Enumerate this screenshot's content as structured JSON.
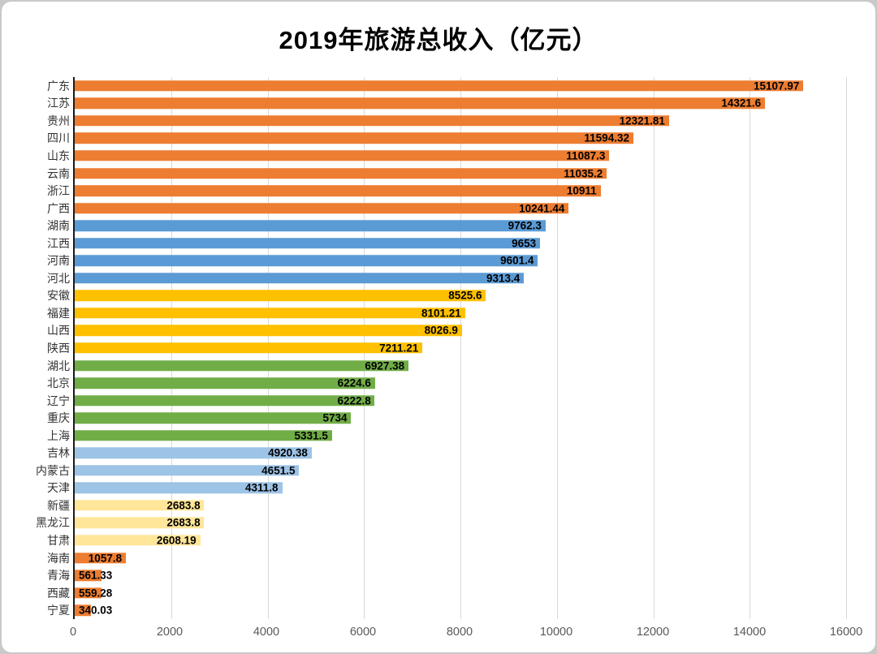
{
  "chart_data": {
    "type": "bar",
    "orientation": "horizontal",
    "title": "2019年旅游总收入（亿元）",
    "xlabel": "",
    "ylabel": "",
    "xlim": [
      0,
      16000
    ],
    "x_ticks": [
      0,
      2000,
      4000,
      6000,
      8000,
      10000,
      12000,
      14000,
      16000
    ],
    "grid": true,
    "legend": "none",
    "value_label_position": "inside-end",
    "palette": {
      "orange": "#ED7D31",
      "blue": "#5B9BD5",
      "gold": "#FFC000",
      "green": "#70AD47",
      "light_blue": "#9DC3E6",
      "cream": "#FFE699"
    },
    "bars": [
      {
        "category": "广东",
        "value": 15107.97,
        "label": "15107.97",
        "color_key": "orange"
      },
      {
        "category": "江苏",
        "value": 14321.6,
        "label": "14321.6",
        "color_key": "orange"
      },
      {
        "category": "贵州",
        "value": 12321.81,
        "label": "12321.81",
        "color_key": "orange"
      },
      {
        "category": "四川",
        "value": 11594.32,
        "label": "11594.32",
        "color_key": "orange"
      },
      {
        "category": "山东",
        "value": 11087.3,
        "label": "11087.3",
        "color_key": "orange"
      },
      {
        "category": "云南",
        "value": 11035.2,
        "label": "11035.2",
        "color_key": "orange"
      },
      {
        "category": "浙江",
        "value": 10911,
        "label": "10911",
        "color_key": "orange"
      },
      {
        "category": "广西",
        "value": 10241.44,
        "label": "10241.44",
        "color_key": "orange"
      },
      {
        "category": "湖南",
        "value": 9762.3,
        "label": "9762.3",
        "color_key": "blue"
      },
      {
        "category": "江西",
        "value": 9653,
        "label": "9653",
        "color_key": "blue"
      },
      {
        "category": "河南",
        "value": 9601.4,
        "label": "9601.4",
        "color_key": "blue"
      },
      {
        "category": "河北",
        "value": 9313.4,
        "label": "9313.4",
        "color_key": "blue"
      },
      {
        "category": "安徽",
        "value": 8525.6,
        "label": "8525.6",
        "color_key": "gold"
      },
      {
        "category": "福建",
        "value": 8101.21,
        "label": "8101.21",
        "color_key": "gold"
      },
      {
        "category": "山西",
        "value": 8026.9,
        "label": "8026.9",
        "color_key": "gold"
      },
      {
        "category": "陕西",
        "value": 7211.21,
        "label": "7211.21",
        "color_key": "gold"
      },
      {
        "category": "湖北",
        "value": 6927.38,
        "label": "6927.38",
        "color_key": "green"
      },
      {
        "category": "北京",
        "value": 6224.6,
        "label": "6224.6",
        "color_key": "green"
      },
      {
        "category": "辽宁",
        "value": 6222.8,
        "label": "6222.8",
        "color_key": "green"
      },
      {
        "category": "重庆",
        "value": 5734,
        "label": "5734",
        "color_key": "green"
      },
      {
        "category": "上海",
        "value": 5331.5,
        "label": "5331.5",
        "color_key": "green"
      },
      {
        "category": "吉林",
        "value": 4920.38,
        "label": "4920.38",
        "color_key": "light_blue"
      },
      {
        "category": "内蒙古",
        "value": 4651.5,
        "label": "4651.5",
        "color_key": "light_blue"
      },
      {
        "category": "天津",
        "value": 4311.8,
        "label": "4311.8",
        "color_key": "light_blue"
      },
      {
        "category": "新疆",
        "value": 2683.8,
        "label": "2683.8",
        "color_key": "cream"
      },
      {
        "category": "黑龙江",
        "value": 2683.8,
        "label": "2683.8",
        "color_key": "cream"
      },
      {
        "category": "甘肃",
        "value": 2608.19,
        "label": "2608.19",
        "color_key": "cream"
      },
      {
        "category": "海南",
        "value": 1057.8,
        "label": "1057.8",
        "color_key": "orange"
      },
      {
        "category": "青海",
        "value": 561.33,
        "label": "561.33",
        "color_key": "orange"
      },
      {
        "category": "西藏",
        "value": 559.28,
        "label": "559.28",
        "color_key": "orange"
      },
      {
        "category": "宁夏",
        "value": 340.03,
        "label": "340.03",
        "color_key": "orange"
      }
    ]
  }
}
